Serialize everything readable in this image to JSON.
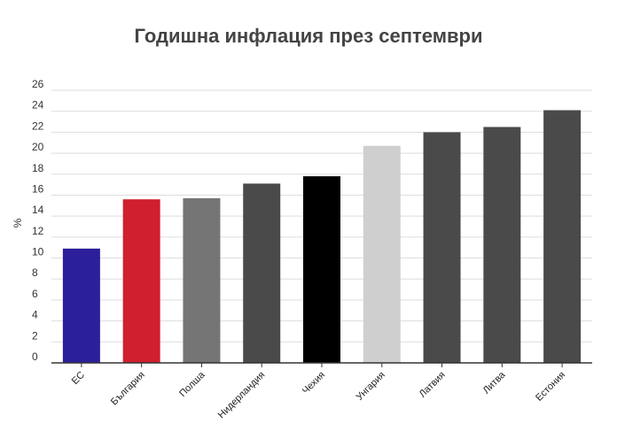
{
  "chart_data": {
    "type": "bar",
    "title": "Годишна инфлация през септември",
    "xlabel": "",
    "ylabel": "%",
    "ylim": [
      0,
      26
    ],
    "yticks": [
      0,
      2,
      4,
      6,
      8,
      10,
      12,
      14,
      16,
      18,
      20,
      22,
      24,
      26
    ],
    "grid": true,
    "categories": [
      "ЕС",
      "България",
      "Полша",
      "Нидерландия",
      "Чехия",
      "Унгария",
      "Латвия",
      "Литва",
      "Естония"
    ],
    "values": [
      10.9,
      15.6,
      15.7,
      17.1,
      17.8,
      20.7,
      22.0,
      22.5,
      24.1
    ],
    "colors": [
      "#2b1f9b",
      "#d01f2e",
      "#757575",
      "#4a4a4a",
      "#000000",
      "#cfcfcf",
      "#4a4a4a",
      "#4a4a4a",
      "#4a4a4a"
    ]
  }
}
